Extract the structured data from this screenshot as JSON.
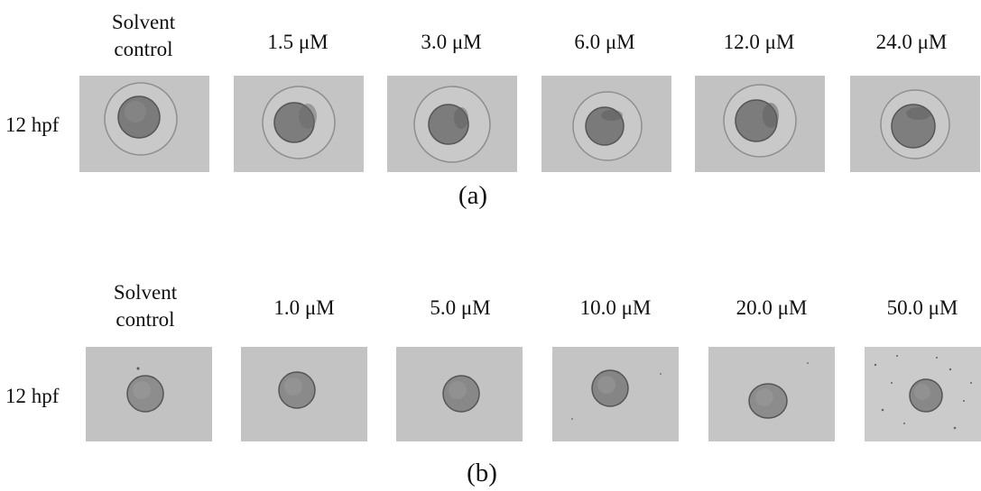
{
  "figure": {
    "panel_a": {
      "caption": "(a)",
      "row_label": "12 hpf",
      "columns": [
        {
          "label": "Solvent\ncontrol"
        },
        {
          "label": "1.5 μM"
        },
        {
          "label": "3.0 μM"
        },
        {
          "label": "6.0 μM"
        },
        {
          "label": "12.0 μM"
        },
        {
          "label": "24.0 μM"
        }
      ]
    },
    "panel_b": {
      "caption": "(b)",
      "row_label": "12 hpf",
      "columns": [
        {
          "label": "Solvent\ncontrol"
        },
        {
          "label": "1.0 μM"
        },
        {
          "label": "5.0 μM"
        },
        {
          "label": "10.0 μM"
        },
        {
          "label": "20.0 μM"
        },
        {
          "label": "50.0 μM"
        }
      ]
    },
    "colors": {
      "background_gray": "#bdbdbd",
      "embryo_dark": "#6f6f6f",
      "chorion_line": "#8a8a8a"
    }
  }
}
